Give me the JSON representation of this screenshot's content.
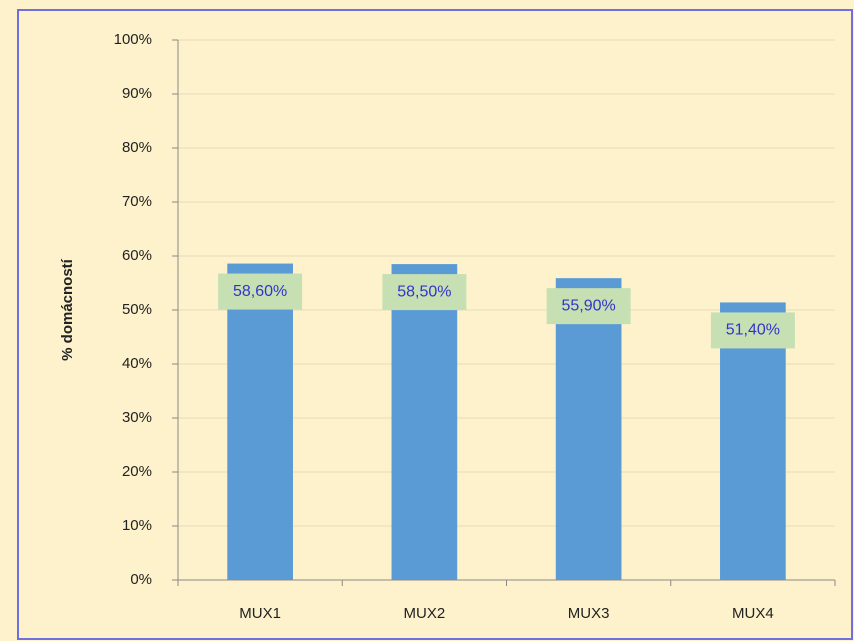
{
  "chart_data": {
    "type": "bar",
    "y_label": "% domácností",
    "categories": [
      "MUX1",
      "MUX2",
      "MUX3",
      "MUX4"
    ],
    "values": [
      58.6,
      58.5,
      55.9,
      51.4
    ],
    "value_labels": [
      "58,60%",
      "58,50%",
      "55,90%",
      "51,40%"
    ],
    "color": "#5b9bd5",
    "ylim": [
      0,
      100
    ],
    "yticks": [
      {
        "value": 0,
        "label": "0%"
      },
      {
        "value": 10,
        "label": "10%"
      },
      {
        "value": 20,
        "label": "20%"
      },
      {
        "value": 30,
        "label": "30%"
      },
      {
        "value": 40,
        "label": "40%"
      },
      {
        "value": 50,
        "label": "50%"
      },
      {
        "value": 60,
        "label": "60%"
      },
      {
        "value": 70,
        "label": "70%"
      },
      {
        "value": 80,
        "label": "80%"
      },
      {
        "value": 90,
        "label": "90%"
      },
      {
        "value": 100,
        "label": "100%"
      }
    ],
    "grid": true
  }
}
